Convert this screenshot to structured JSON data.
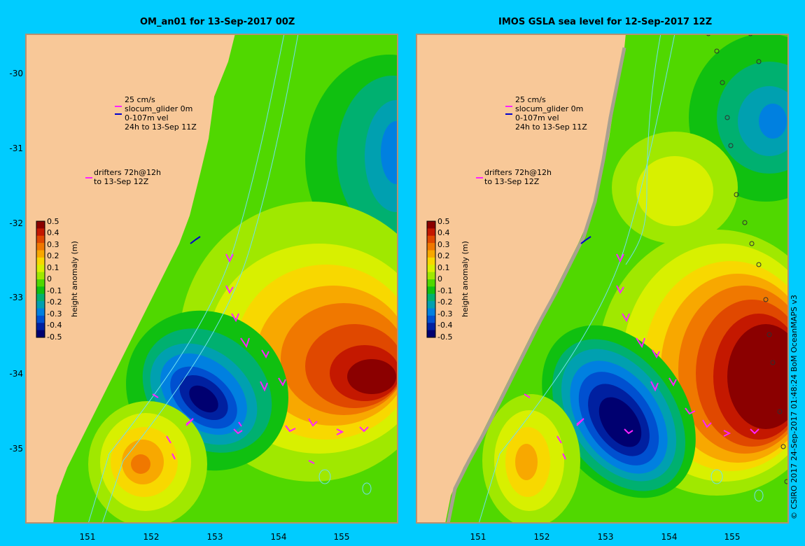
{
  "panels": [
    {
      "title": "OM_an01 for 13-Sep-2017 00Z",
      "legend_lines": [
        "25 cm/s",
        "slocum_glider 0m",
        "0-107m vel",
        "24h to 13-Sep 11Z"
      ],
      "drifters_lines": [
        "drifters 72h@12h",
        "to 13-Sep 12Z"
      ]
    },
    {
      "title": "IMOS GSLA sea level  for 12-Sep-2017 12Z",
      "legend_lines": [
        "25 cm/s",
        "slocum_glider 0m",
        "0-107m vel",
        "24h to 13-Sep 11Z"
      ],
      "drifters_lines": [
        "drifters 72h@12h",
        "to 13-Sep 12Z"
      ]
    }
  ],
  "colorbar": {
    "label": "height anomaly (m)",
    "ticks": [
      "0.5",
      "0.4",
      "0.3",
      "0.2",
      "0.1",
      "0",
      "-0.1",
      "-0.2",
      "-0.3",
      "-0.4",
      "-0.5"
    ],
    "colors": [
      "#8b0000",
      "#c41800",
      "#e04800",
      "#f07800",
      "#f8a800",
      "#f8d800",
      "#d8f000",
      "#a0e800",
      "#50d800",
      "#10c010",
      "#00b070",
      "#00a0b0",
      "#0080e0",
      "#0050d0",
      "#0020a0",
      "#000070"
    ]
  },
  "axes": {
    "lat_ticks": [
      "-30",
      "-31",
      "-32",
      "-33",
      "-34",
      "-35"
    ],
    "lon_ticks": [
      "151",
      "152",
      "153",
      "154",
      "155"
    ]
  },
  "copyright": "© CSIRO 2017   24-Sep-2017 01:48:24 BoM OceanMAPS v3",
  "colors": {
    "background": "#00ccff",
    "land": "#f8c898",
    "arrow": "#ff22ff",
    "glider": "#0000cc"
  }
}
